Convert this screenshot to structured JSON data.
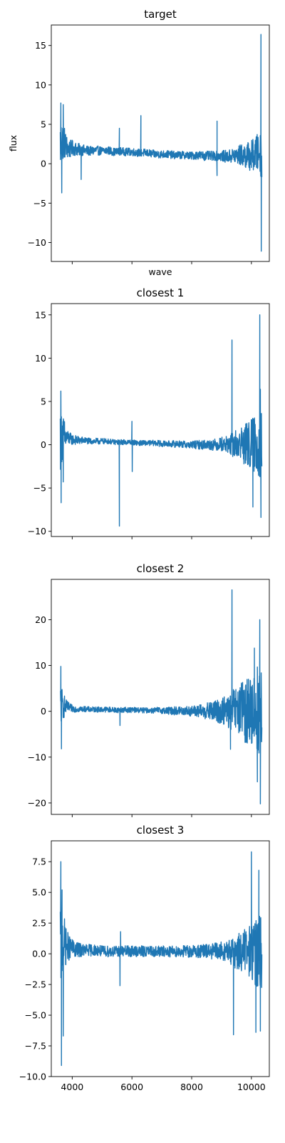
{
  "chart_data": [
    {
      "type": "line",
      "title": "target",
      "xlabel": "wave",
      "ylabel": "flux",
      "xlim": [
        3300,
        10600
      ],
      "ylim": [
        -12.4,
        17.6
      ],
      "xticks": [
        4000,
        6000,
        8000,
        10000
      ],
      "xtick_labels_shown": false,
      "yticks": [
        -10,
        -5,
        0,
        5,
        10,
        15
      ],
      "ytick_labels": [
        "−10",
        "−5",
        "0",
        "5",
        "10",
        "15"
      ],
      "series": [
        {
          "color": "#1f77b4",
          "x": [
            3600,
            3700,
            3800,
            3900,
            4000,
            4200,
            4400,
            4600,
            4800,
            5000,
            5200,
            5400,
            5550,
            5600,
            5800,
            6000,
            6200,
            6300,
            6400,
            6600,
            6800,
            7000,
            7200,
            7400,
            7600,
            7800,
            8000,
            8200,
            8400,
            8600,
            8800,
            8850,
            9000,
            9200,
            9400,
            9600,
            9800,
            10000,
            10200,
            10300,
            10350
          ],
          "y": [
            2.5,
            3.0,
            2.2,
            1.8,
            2.0,
            1.8,
            1.7,
            1.6,
            1.7,
            1.6,
            1.7,
            1.5,
            1.5,
            1.6,
            1.5,
            1.5,
            1.4,
            1.4,
            1.4,
            1.3,
            1.2,
            1.2,
            1.2,
            1.1,
            1.1,
            1.1,
            1.0,
            1.1,
            1.0,
            1.0,
            1.0,
            1.0,
            1.0,
            0.9,
            1.0,
            1.1,
            1.0,
            1.0,
            1.3,
            1.5,
            1.0
          ],
          "noise": [
            3.5,
            2.5,
            1.6,
            1.2,
            1.0,
            0.8,
            0.7,
            0.6,
            0.6,
            0.55,
            0.55,
            0.5,
            0.5,
            0.5,
            0.5,
            0.5,
            0.5,
            0.5,
            0.5,
            0.5,
            0.5,
            0.5,
            0.5,
            0.5,
            0.5,
            0.5,
            0.5,
            0.55,
            0.6,
            0.6,
            0.6,
            0.6,
            0.7,
            0.8,
            1.0,
            1.3,
            1.6,
            2.0,
            2.5,
            3.0,
            3.0
          ],
          "spikes": [
            [
              3620,
              7.7
            ],
            [
              3650,
              -3.7
            ],
            [
              3700,
              7.5
            ],
            [
              4300,
              -2.0
            ],
            [
              5580,
              4.5
            ],
            [
              6300,
              6.1
            ],
            [
              8850,
              5.4
            ],
            [
              8850,
              -1.5
            ],
            [
              10320,
              16.4
            ],
            [
              10330,
              -11.1
            ]
          ]
        }
      ]
    },
    {
      "type": "line",
      "title": "closest 1",
      "xlabel": "",
      "ylabel": "",
      "xlim": [
        3300,
        10600
      ],
      "ylim": [
        -10.6,
        16.3
      ],
      "xticks": [
        4000,
        6000,
        8000,
        10000
      ],
      "xtick_labels_shown": false,
      "yticks": [
        -10,
        -5,
        0,
        5,
        10,
        15
      ],
      "ytick_labels": [
        "−10",
        "−5",
        "0",
        "5",
        "10",
        "15"
      ],
      "series": [
        {
          "color": "#1f77b4",
          "x": [
            3600,
            3700,
            3800,
            3900,
            4000,
            4200,
            4400,
            4600,
            4800,
            5000,
            5200,
            5400,
            5600,
            5800,
            6000,
            6200,
            6400,
            6600,
            6800,
            7000,
            7200,
            7400,
            7600,
            7800,
            8000,
            8200,
            8400,
            8600,
            8800,
            9000,
            9200,
            9400,
            9600,
            9800,
            10000,
            10200,
            10350
          ],
          "y": [
            1.0,
            1.0,
            0.8,
            0.7,
            0.6,
            0.5,
            0.5,
            0.4,
            0.4,
            0.4,
            0.4,
            0.3,
            0.3,
            0.3,
            0.3,
            0.2,
            0.2,
            0.2,
            0.2,
            0.1,
            0.1,
            0.1,
            0.1,
            0.0,
            0.0,
            0.0,
            0.0,
            0.0,
            0.0,
            0.1,
            0.0,
            0.0,
            0.1,
            0.0,
            0.0,
            0.0,
            0.0
          ],
          "noise": [
            4.0,
            2.5,
            1.2,
            0.8,
            0.6,
            0.5,
            0.4,
            0.35,
            0.35,
            0.35,
            0.3,
            0.3,
            0.3,
            0.3,
            0.3,
            0.3,
            0.3,
            0.3,
            0.35,
            0.35,
            0.35,
            0.4,
            0.4,
            0.4,
            0.45,
            0.5,
            0.55,
            0.6,
            0.7,
            0.8,
            1.0,
            1.5,
            2.0,
            2.5,
            3.0,
            4.0,
            4.0
          ],
          "spikes": [
            [
              3620,
              6.2
            ],
            [
              3630,
              -6.7
            ],
            [
              3700,
              -4.3
            ],
            [
              5580,
              -9.4
            ],
            [
              6000,
              2.7
            ],
            [
              6010,
              -3.1
            ],
            [
              9350,
              12.1
            ],
            [
              10280,
              15.0
            ],
            [
              10320,
              -8.4
            ],
            [
              10300,
              6.4
            ],
            [
              10050,
              -7.2
            ]
          ]
        }
      ]
    },
    {
      "type": "line",
      "title": "closest 2",
      "xlabel": "",
      "ylabel": "",
      "xlim": [
        3300,
        10600
      ],
      "ylim": [
        -22.5,
        28.8
      ],
      "xticks": [
        4000,
        6000,
        8000,
        10000
      ],
      "xtick_labels_shown": false,
      "yticks": [
        -20,
        -10,
        0,
        10,
        20
      ],
      "ytick_labels": [
        "−20",
        "−10",
        "0",
        "10",
        "20"
      ],
      "series": [
        {
          "color": "#1f77b4",
          "x": [
            3600,
            3700,
            3800,
            3900,
            4000,
            4200,
            4400,
            4600,
            4800,
            5000,
            5200,
            5400,
            5600,
            5800,
            6000,
            6200,
            6400,
            6600,
            6800,
            7000,
            7200,
            7400,
            7600,
            7800,
            8000,
            8200,
            8400,
            8600,
            8800,
            9000,
            9200,
            9400,
            9600,
            9800,
            10000,
            10200,
            10350
          ],
          "y": [
            1.5,
            1.2,
            1.0,
            0.8,
            0.6,
            0.5,
            0.5,
            0.4,
            0.4,
            0.4,
            0.4,
            0.3,
            0.3,
            0.3,
            0.3,
            0.3,
            0.2,
            0.2,
            0.2,
            0.2,
            0.1,
            0.1,
            0.1,
            0.1,
            0.0,
            0.0,
            0.0,
            0.0,
            0.0,
            0.0,
            0.0,
            0.0,
            0.0,
            0.0,
            0.0,
            0.0,
            0.0
          ],
          "noise": [
            5.0,
            3.0,
            1.5,
            1.0,
            0.8,
            0.7,
            0.6,
            0.6,
            0.6,
            0.6,
            0.6,
            0.6,
            0.6,
            0.6,
            0.6,
            0.6,
            0.6,
            0.6,
            0.7,
            0.7,
            0.8,
            0.9,
            1.0,
            1.0,
            1.2,
            1.4,
            1.6,
            2.0,
            2.5,
            3.0,
            3.5,
            5.0,
            6.0,
            7.0,
            8.0,
            10.0,
            10.0
          ],
          "spikes": [
            [
              3620,
              9.8
            ],
            [
              3640,
              -8.2
            ],
            [
              5600,
              -3.1
            ],
            [
              9350,
              26.5
            ],
            [
              9300,
              -8.3
            ],
            [
              10280,
              20.0
            ],
            [
              10300,
              -20.2
            ],
            [
              10200,
              -15.4
            ],
            [
              10100,
              13.8
            ]
          ]
        }
      ]
    },
    {
      "type": "line",
      "title": "closest 3",
      "xlabel": "",
      "ylabel": "",
      "xlim": [
        3300,
        10600
      ],
      "ylim": [
        -10.0,
        9.2
      ],
      "xticks": [
        4000,
        6000,
        8000,
        10000
      ],
      "xtick_labels_shown": true,
      "xtick_labels": [
        "4000",
        "6000",
        "8000",
        "10000"
      ],
      "yticks": [
        -10,
        -7.5,
        -5,
        -2.5,
        0,
        2.5,
        5,
        7.5
      ],
      "ytick_labels": [
        "−10.0",
        "−7.5",
        "−5.0",
        "−2.5",
        "0.0",
        "2.5",
        "5.0",
        "7.5"
      ],
      "series": [
        {
          "color": "#1f77b4",
          "x": [
            3600,
            3700,
            3800,
            3900,
            4000,
            4200,
            4400,
            4600,
            4800,
            5000,
            5200,
            5400,
            5600,
            5800,
            6000,
            6200,
            6400,
            6600,
            6800,
            7000,
            7200,
            7400,
            7600,
            7800,
            8000,
            8200,
            8400,
            8600,
            8800,
            9000,
            9200,
            9400,
            9600,
            9800,
            10000,
            10200,
            10350
          ],
          "y": [
            0.8,
            1.0,
            0.6,
            0.5,
            0.4,
            0.3,
            0.3,
            0.3,
            0.3,
            0.2,
            0.2,
            0.2,
            0.2,
            0.2,
            0.2,
            0.2,
            0.2,
            0.2,
            0.2,
            0.2,
            0.2,
            0.2,
            0.2,
            0.2,
            0.2,
            0.2,
            0.2,
            0.2,
            0.2,
            0.2,
            0.2,
            0.1,
            0.2,
            0.2,
            0.2,
            0.2,
            0.2
          ],
          "noise": [
            4.0,
            2.5,
            1.5,
            1.0,
            0.8,
            0.6,
            0.5,
            0.5,
            0.45,
            0.45,
            0.45,
            0.45,
            0.45,
            0.45,
            0.45,
            0.45,
            0.45,
            0.45,
            0.45,
            0.45,
            0.45,
            0.5,
            0.5,
            0.5,
            0.5,
            0.55,
            0.6,
            0.6,
            0.7,
            0.8,
            0.9,
            1.2,
            1.6,
            2.0,
            2.5,
            3.0,
            3.0
          ],
          "spikes": [
            [
              3620,
              7.5
            ],
            [
              3640,
              -9.1
            ],
            [
              3660,
              5.2
            ],
            [
              3700,
              -6.7
            ],
            [
              5600,
              -2.6
            ],
            [
              5620,
              1.8
            ],
            [
              9400,
              -6.6
            ],
            [
              10000,
              8.3
            ],
            [
              10150,
              -6.4
            ],
            [
              10250,
              6.8
            ],
            [
              10300,
              -6.3
            ]
          ]
        }
      ]
    }
  ]
}
